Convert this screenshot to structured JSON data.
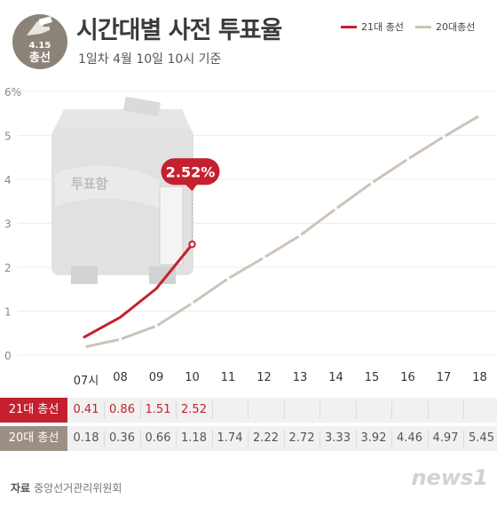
{
  "badge": {
    "date": "4.15",
    "label": "총선"
  },
  "title": "시간대별 사전 투표율",
  "subtitle": "1일차 4월 10일  10시 기준",
  "legend": {
    "s21": {
      "label": "21대 총선",
      "color": "#c4202e"
    },
    "s20": {
      "label": "20대총선",
      "color": "#cdc3b8"
    }
  },
  "illustration": {
    "box_label": "투표함",
    "icon": "ballot-box-icon"
  },
  "callout": {
    "text": "2.52%"
  },
  "table": {
    "row21_label": "21대 총선",
    "row20_label": "20대 총선"
  },
  "source": {
    "label": "자료",
    "text": "중앙선거관리위원회"
  },
  "logo": "news1",
  "chart_data": {
    "type": "line",
    "x_labels": [
      "07시",
      "08",
      "09",
      "10",
      "11",
      "12",
      "13",
      "14",
      "15",
      "16",
      "17",
      "18"
    ],
    "y_ticks": [
      "6%",
      "5",
      "4",
      "3",
      "2",
      "1",
      "0"
    ],
    "ylim": [
      0,
      6
    ],
    "series": [
      {
        "name": "21대 총선",
        "color": "#c4202e",
        "values": [
          0.41,
          0.86,
          1.51,
          2.52
        ]
      },
      {
        "name": "20대총선",
        "color": "#cdc3b8",
        "values": [
          0.18,
          0.36,
          0.66,
          1.18,
          1.74,
          2.22,
          2.72,
          3.33,
          3.92,
          4.46,
          4.97,
          5.45
        ]
      }
    ]
  }
}
